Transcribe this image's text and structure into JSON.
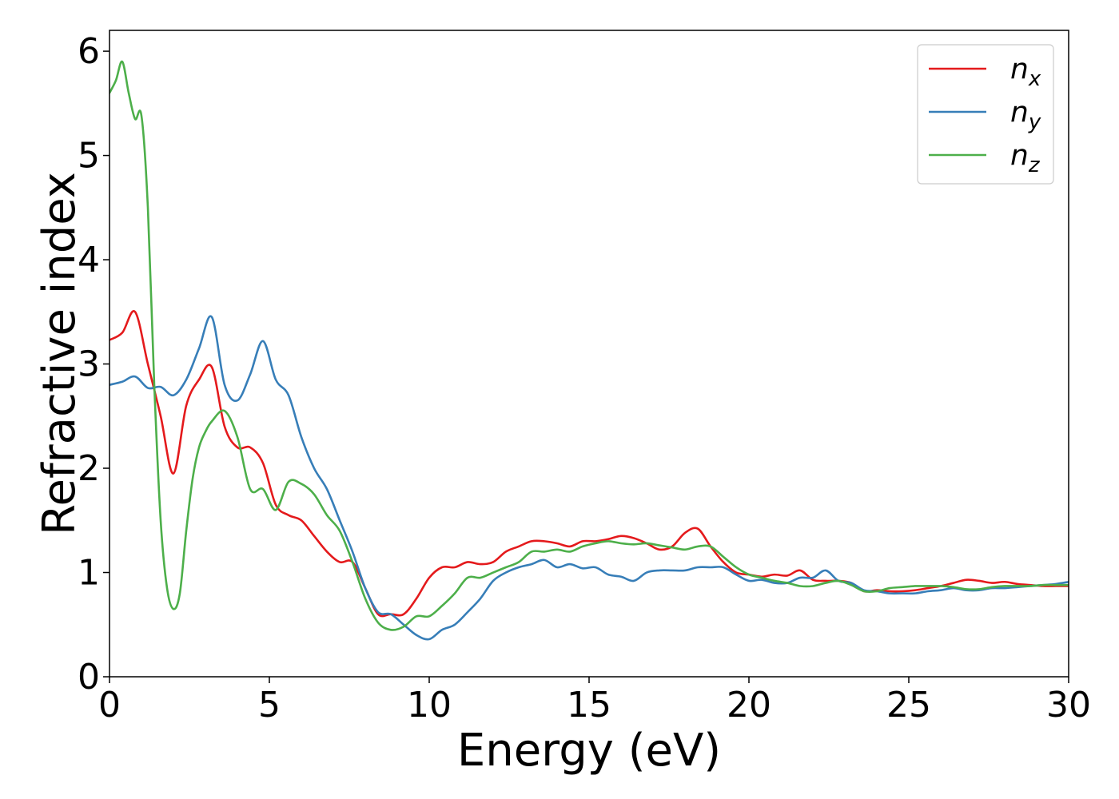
{
  "chart_data": {
    "type": "line",
    "xlabel": "Energy (eV)",
    "ylabel": "Refractive index",
    "xlim": [
      0,
      30
    ],
    "ylim": [
      0,
      6.2
    ],
    "xticks": [
      0,
      5,
      10,
      15,
      20,
      25,
      30
    ],
    "yticks": [
      0,
      1,
      2,
      3,
      4,
      5,
      6
    ],
    "xtick_labels": [
      "0",
      "5",
      "10",
      "15",
      "20",
      "25",
      "30"
    ],
    "ytick_labels": [
      "0",
      "1",
      "2",
      "3",
      "4",
      "5",
      "6"
    ],
    "grid": false,
    "legend_position": "top-right",
    "series": [
      {
        "name": "n",
        "subscript": "x",
        "color": "#e41a1c",
        "x": [
          0,
          0.4,
          0.8,
          1.2,
          1.6,
          2.0,
          2.4,
          2.8,
          3.2,
          3.6,
          4.0,
          4.4,
          4.8,
          5.2,
          5.6,
          6.0,
          6.4,
          6.8,
          7.2,
          7.6,
          8.0,
          8.4,
          8.8,
          9.2,
          9.6,
          10.0,
          10.4,
          10.8,
          11.2,
          11.6,
          12.0,
          12.4,
          12.8,
          13.2,
          13.6,
          14.0,
          14.4,
          14.8,
          15.2,
          15.6,
          16.0,
          16.4,
          16.8,
          17.2,
          17.6,
          18.0,
          18.4,
          18.8,
          19.2,
          19.6,
          20.0,
          20.4,
          20.8,
          21.2,
          21.6,
          22.0,
          22.4,
          22.8,
          23.2,
          23.6,
          24.0,
          24.4,
          24.8,
          25.2,
          25.6,
          26.0,
          26.4,
          26.8,
          27.2,
          27.6,
          28.0,
          28.4,
          28.8,
          29.2,
          29.6,
          30.0
        ],
        "y": [
          3.23,
          3.3,
          3.5,
          3.0,
          2.5,
          1.95,
          2.6,
          2.85,
          2.97,
          2.4,
          2.2,
          2.2,
          2.05,
          1.65,
          1.55,
          1.5,
          1.35,
          1.2,
          1.1,
          1.1,
          0.85,
          0.6,
          0.6,
          0.6,
          0.75,
          0.95,
          1.05,
          1.05,
          1.1,
          1.08,
          1.1,
          1.2,
          1.25,
          1.3,
          1.3,
          1.28,
          1.25,
          1.3,
          1.3,
          1.32,
          1.35,
          1.33,
          1.28,
          1.22,
          1.25,
          1.38,
          1.42,
          1.25,
          1.1,
          1.0,
          0.98,
          0.96,
          0.98,
          0.97,
          1.02,
          0.93,
          0.92,
          0.92,
          0.9,
          0.82,
          0.83,
          0.82,
          0.82,
          0.83,
          0.85,
          0.87,
          0.9,
          0.93,
          0.92,
          0.9,
          0.91,
          0.89,
          0.88,
          0.87,
          0.87,
          0.87
        ]
      },
      {
        "name": "n",
        "subscript": "y",
        "color": "#377eb8",
        "x": [
          0,
          0.4,
          0.8,
          1.2,
          1.6,
          2.0,
          2.4,
          2.8,
          3.2,
          3.6,
          4.0,
          4.4,
          4.8,
          5.2,
          5.6,
          6.0,
          6.4,
          6.8,
          7.2,
          7.6,
          8.0,
          8.4,
          8.8,
          9.2,
          9.6,
          10.0,
          10.4,
          10.8,
          11.2,
          11.6,
          12.0,
          12.4,
          12.8,
          13.2,
          13.6,
          14.0,
          14.4,
          14.8,
          15.2,
          15.6,
          16.0,
          16.4,
          16.8,
          17.2,
          17.6,
          18.0,
          18.4,
          18.8,
          19.2,
          19.6,
          20.0,
          20.4,
          20.8,
          21.2,
          21.6,
          22.0,
          22.4,
          22.8,
          23.2,
          23.6,
          24.0,
          24.4,
          24.8,
          25.2,
          25.6,
          26.0,
          26.4,
          26.8,
          27.2,
          27.6,
          28.0,
          28.4,
          28.8,
          29.2,
          29.6,
          30.0
        ],
        "y": [
          2.8,
          2.83,
          2.88,
          2.77,
          2.78,
          2.7,
          2.85,
          3.15,
          3.45,
          2.8,
          2.65,
          2.9,
          3.22,
          2.85,
          2.7,
          2.3,
          2.0,
          1.8,
          1.5,
          1.2,
          0.85,
          0.62,
          0.6,
          0.5,
          0.4,
          0.36,
          0.45,
          0.5,
          0.62,
          0.75,
          0.92,
          1.0,
          1.05,
          1.08,
          1.12,
          1.05,
          1.08,
          1.04,
          1.05,
          0.98,
          0.96,
          0.92,
          1.0,
          1.02,
          1.02,
          1.02,
          1.05,
          1.05,
          1.05,
          0.98,
          0.92,
          0.93,
          0.9,
          0.9,
          0.95,
          0.95,
          1.02,
          0.92,
          0.9,
          0.83,
          0.82,
          0.8,
          0.8,
          0.8,
          0.82,
          0.83,
          0.85,
          0.83,
          0.83,
          0.85,
          0.85,
          0.86,
          0.87,
          0.88,
          0.89,
          0.91
        ]
      },
      {
        "name": "n",
        "subscript": "z",
        "color": "#4daf4a",
        "x": [
          0,
          0.2,
          0.4,
          0.6,
          0.8,
          1.0,
          1.2,
          1.4,
          1.6,
          1.8,
          2.0,
          2.2,
          2.4,
          2.6,
          2.8,
          3.0,
          3.2,
          3.6,
          4.0,
          4.4,
          4.8,
          5.2,
          5.6,
          6.0,
          6.4,
          6.8,
          7.2,
          7.6,
          8.0,
          8.4,
          8.8,
          9.2,
          9.6,
          10.0,
          10.4,
          10.8,
          11.2,
          11.6,
          12.0,
          12.4,
          12.8,
          13.2,
          13.6,
          14.0,
          14.4,
          14.8,
          15.2,
          15.6,
          16.0,
          16.4,
          16.8,
          17.2,
          17.6,
          18.0,
          18.4,
          18.8,
          19.2,
          19.6,
          20.0,
          20.4,
          20.8,
          21.2,
          21.6,
          22.0,
          22.4,
          22.8,
          23.2,
          23.6,
          24.0,
          24.4,
          24.8,
          25.2,
          25.6,
          26.0,
          26.4,
          26.8,
          27.2,
          27.6,
          28.0,
          28.4,
          28.8,
          29.2,
          29.6,
          30.0
        ],
        "y": [
          5.6,
          5.72,
          5.9,
          5.6,
          5.35,
          5.38,
          4.5,
          2.8,
          1.5,
          0.85,
          0.65,
          0.8,
          1.4,
          1.9,
          2.2,
          2.35,
          2.45,
          2.55,
          2.3,
          1.8,
          1.8,
          1.6,
          1.87,
          1.85,
          1.75,
          1.55,
          1.4,
          1.1,
          0.75,
          0.52,
          0.45,
          0.48,
          0.58,
          0.58,
          0.68,
          0.8,
          0.95,
          0.95,
          1.0,
          1.05,
          1.1,
          1.2,
          1.2,
          1.22,
          1.2,
          1.25,
          1.28,
          1.3,
          1.28,
          1.27,
          1.28,
          1.26,
          1.24,
          1.22,
          1.25,
          1.25,
          1.15,
          1.05,
          0.98,
          0.95,
          0.92,
          0.9,
          0.87,
          0.87,
          0.9,
          0.92,
          0.88,
          0.82,
          0.82,
          0.85,
          0.86,
          0.87,
          0.87,
          0.87,
          0.86,
          0.84,
          0.84,
          0.86,
          0.87,
          0.87,
          0.87,
          0.88,
          0.88,
          0.88
        ]
      }
    ]
  }
}
